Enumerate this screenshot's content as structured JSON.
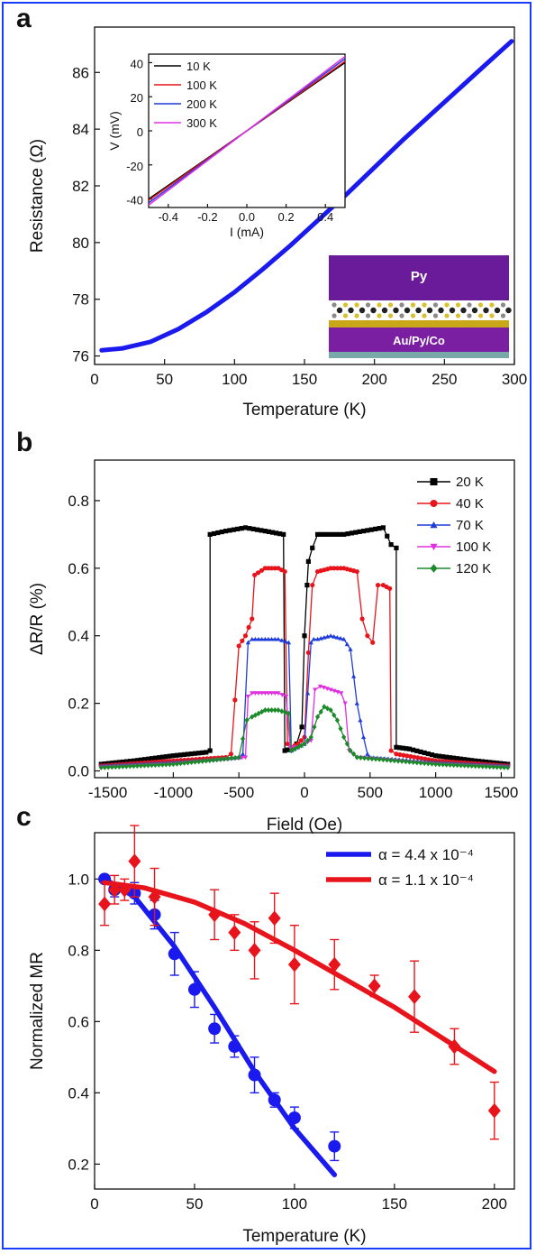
{
  "chart_data": [
    {
      "panel": "a",
      "type": "line",
      "xlabel": "Temperature (K)",
      "ylabel": "Resistance (Ω)",
      "xlim": [
        0,
        300
      ],
      "ylim": [
        75.7,
        87.6
      ],
      "xticks": [
        0,
        50,
        100,
        150,
        200,
        250,
        300
      ],
      "yticks": [
        76,
        78,
        80,
        82,
        84,
        86
      ],
      "series": [
        {
          "color": "#1a1aee",
          "x": [
            5,
            20,
            40,
            60,
            80,
            100,
            120,
            140,
            160,
            180,
            200,
            220,
            240,
            260,
            280,
            298
          ],
          "y": [
            76.2,
            76.27,
            76.5,
            76.95,
            77.55,
            78.25,
            79.05,
            79.9,
            80.8,
            81.7,
            82.65,
            83.6,
            84.5,
            85.4,
            86.3,
            87.1
          ]
        }
      ],
      "inset": {
        "type": "line",
        "xlabel": "I (mA)",
        "ylabel": "V (mV)",
        "xlim": [
          -0.5,
          0.5
        ],
        "ylim": [
          -45,
          45
        ],
        "xticks": [
          -0.4,
          -0.2,
          0.0,
          0.2,
          0.4
        ],
        "xtick_labels": [
          "-0.4",
          "-0.2",
          "0.0",
          "0.2",
          "0.4"
        ],
        "yticks": [
          -40,
          -20,
          0,
          20,
          40
        ],
        "legend_position": "top-left",
        "series": [
          {
            "name": "10 K",
            "color": "#000000",
            "x": [
              -0.5,
              0.5
            ],
            "y": [
              -40,
              40
            ]
          },
          {
            "name": "100 K",
            "color": "#e8141c",
            "x": [
              -0.5,
              0.5
            ],
            "y": [
              -40.8,
              40.8
            ]
          },
          {
            "name": "200 K",
            "color": "#1f3cdb",
            "x": [
              -0.5,
              0.5
            ],
            "y": [
              -42.3,
              42.3
            ]
          },
          {
            "name": "300 K",
            "color": "#e030e0",
            "x": [
              -0.5,
              0.5
            ],
            "y": [
              -43.6,
              43.6
            ]
          }
        ]
      },
      "device_schematic": {
        "top_layer": "Py",
        "bottom_layer": "Au/Py/Co",
        "top_color": "#6a1b9a",
        "bottom_color": "#7b1fa2",
        "substrate_color": "#78a8a8"
      }
    },
    {
      "panel": "b",
      "type": "line",
      "xlabel": "Field (Oe)",
      "ylabel": "ΔR/R (%)",
      "xlim": [
        -1600,
        1600
      ],
      "ylim": [
        -0.02,
        0.92
      ],
      "xticks": [
        -1500,
        -1000,
        -500,
        0,
        500,
        1000,
        1500
      ],
      "yticks": [
        0.0,
        0.2,
        0.4,
        0.6,
        0.8
      ],
      "ytick_labels": [
        "0.0",
        "0.2",
        "0.4",
        "0.6",
        "0.8"
      ],
      "legend_position": "top-right",
      "series": [
        {
          "name": "20 K",
          "color": "#000000",
          "marker": "square",
          "x": [
            -1550,
            -1300,
            -1000,
            -750,
            -720,
            -720,
            -600,
            -450,
            -300,
            -160,
            -150,
            -100,
            -60,
            -20,
            0,
            20,
            30,
            60,
            100,
            150,
            300,
            450,
            600,
            660,
            700,
            700,
            800,
            1000,
            1300,
            1550
          ],
          "y": [
            0.02,
            0.03,
            0.045,
            0.055,
            0.06,
            0.7,
            0.71,
            0.72,
            0.71,
            0.7,
            0.06,
            0.065,
            0.08,
            0.13,
            0.4,
            0.55,
            0.62,
            0.66,
            0.7,
            0.7,
            0.7,
            0.71,
            0.72,
            0.67,
            0.66,
            0.07,
            0.065,
            0.045,
            0.03,
            0.02
          ]
        },
        {
          "name": "40 K",
          "color": "#e8141c",
          "marker": "circle",
          "x": [
            -1550,
            -1000,
            -600,
            -560,
            -500,
            -450,
            -400,
            -380,
            -300,
            -200,
            -150,
            -130,
            -100,
            -50,
            0,
            30,
            60,
            100,
            200,
            300,
            400,
            440,
            480,
            520,
            560,
            600,
            650,
            660,
            700,
            1000,
            1550
          ],
          "y": [
            0.015,
            0.03,
            0.04,
            0.05,
            0.37,
            0.4,
            0.45,
            0.58,
            0.6,
            0.6,
            0.59,
            0.08,
            0.07,
            0.08,
            0.1,
            0.35,
            0.55,
            0.59,
            0.6,
            0.6,
            0.59,
            0.45,
            0.4,
            0.38,
            0.55,
            0.55,
            0.54,
            0.06,
            0.05,
            0.03,
            0.015
          ]
        },
        {
          "name": "70 K",
          "color": "#1f3cdb",
          "marker": "triangle-up",
          "x": [
            -1550,
            -1000,
            -500,
            -470,
            -430,
            -400,
            -300,
            -200,
            -120,
            -100,
            -50,
            0,
            50,
            70,
            100,
            200,
            300,
            350,
            400,
            450,
            480,
            500,
            1000,
            1550
          ],
          "y": [
            0.015,
            0.025,
            0.04,
            0.05,
            0.38,
            0.39,
            0.39,
            0.39,
            0.38,
            0.06,
            0.07,
            0.08,
            0.38,
            0.39,
            0.39,
            0.4,
            0.39,
            0.36,
            0.2,
            0.1,
            0.05,
            0.04,
            0.025,
            0.015
          ]
        },
        {
          "name": "100 K",
          "color": "#e030e0",
          "marker": "triangle-down",
          "x": [
            -1550,
            -1000,
            -450,
            -430,
            -400,
            -300,
            -200,
            -140,
            -110,
            -50,
            0,
            50,
            80,
            120,
            200,
            280,
            310,
            340,
            400,
            1000,
            1550
          ],
          "y": [
            0.01,
            0.02,
            0.04,
            0.22,
            0.23,
            0.23,
            0.23,
            0.22,
            0.07,
            0.07,
            0.08,
            0.09,
            0.24,
            0.25,
            0.24,
            0.23,
            0.2,
            0.06,
            0.04,
            0.02,
            0.01
          ]
        },
        {
          "name": "120 K",
          "color": "#1a8a2a",
          "marker": "diamond",
          "x": [
            -1550,
            -1000,
            -500,
            -440,
            -400,
            -300,
            -200,
            -120,
            -100,
            -50,
            0,
            50,
            100,
            150,
            200,
            250,
            300,
            350,
            400,
            1000,
            1550
          ],
          "y": [
            0.01,
            0.02,
            0.04,
            0.15,
            0.16,
            0.18,
            0.18,
            0.17,
            0.06,
            0.07,
            0.08,
            0.1,
            0.16,
            0.19,
            0.18,
            0.15,
            0.1,
            0.06,
            0.04,
            0.02,
            0.01
          ]
        }
      ]
    },
    {
      "panel": "c",
      "type": "scatter",
      "xlabel": "Temperature (K)",
      "ylabel": "Normalized MR",
      "xlim": [
        0,
        210
      ],
      "ylim": [
        0.13,
        1.13
      ],
      "xticks": [
        0,
        50,
        100,
        150,
        200
      ],
      "yticks": [
        0.2,
        0.4,
        0.6,
        0.8,
        1.0
      ],
      "ytick_labels": [
        "0.2",
        "0.4",
        "0.6",
        "0.8",
        "1.0"
      ],
      "legend_position": "top-right",
      "series": [
        {
          "name": "α = 4.4 x 10⁻⁴",
          "color": "#1a1aee",
          "marker": "circle",
          "x": [
            5,
            10,
            20,
            30,
            40,
            50,
            60,
            70,
            80,
            90,
            100,
            120
          ],
          "y": [
            1.0,
            0.97,
            0.96,
            0.9,
            0.79,
            0.69,
            0.58,
            0.53,
            0.45,
            0.38,
            0.33,
            0.25
          ],
          "err": [
            0.0,
            0.02,
            0.03,
            0.04,
            0.06,
            0.05,
            0.04,
            0.03,
            0.05,
            0.02,
            0.03,
            0.04
          ],
          "fit_x": [
            5,
            20,
            40,
            60,
            80,
            100,
            120
          ],
          "fit_y": [
            1.0,
            0.95,
            0.81,
            0.64,
            0.46,
            0.3,
            0.17
          ]
        },
        {
          "name": "α = 1.1 x 10⁻⁴",
          "color": "#e8141c",
          "marker": "diamond",
          "x": [
            5,
            10,
            15,
            20,
            30,
            60,
            70,
            80,
            90,
            100,
            120,
            140,
            160,
            180,
            200
          ],
          "y": [
            0.93,
            0.97,
            0.97,
            1.05,
            0.95,
            0.9,
            0.85,
            0.8,
            0.89,
            0.76,
            0.76,
            0.7,
            0.67,
            0.53,
            0.35
          ],
          "err": [
            0.06,
            0.04,
            0.03,
            0.1,
            0.08,
            0.07,
            0.05,
            0.08,
            0.07,
            0.11,
            0.07,
            0.03,
            0.1,
            0.05,
            0.08
          ],
          "fit_x": [
            5,
            25,
            50,
            75,
            100,
            125,
            150,
            175,
            200
          ],
          "fit_y": [
            0.99,
            0.975,
            0.935,
            0.875,
            0.8,
            0.72,
            0.64,
            0.55,
            0.46
          ]
        }
      ]
    }
  ],
  "panel_labels": {
    "a": "a",
    "b": "b",
    "c": "c"
  }
}
